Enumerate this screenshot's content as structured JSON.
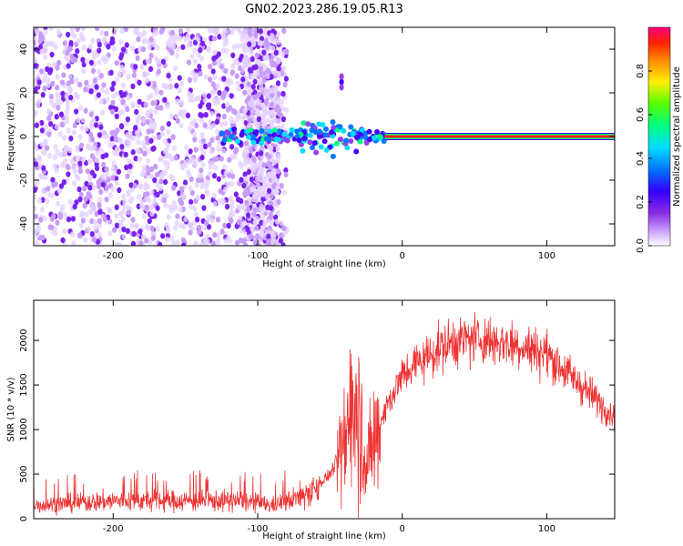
{
  "title": "GN02.2023.286.19.05.R13",
  "chart_data": [
    {
      "type": "heatmap",
      "xlabel": "Height of straight line (km)",
      "ylabel": "Frequency (Hz)",
      "xlim": [
        -255,
        147
      ],
      "ylim": [
        -50,
        50
      ],
      "x_ticks": [
        -200,
        -100,
        0,
        100
      ],
      "y_ticks": [
        -40,
        -20,
        0,
        20,
        40
      ],
      "colorbar": {
        "label": "Normalized spectral amplitude",
        "range": [
          0,
          1
        ],
        "ticks": [
          0.0,
          0.2,
          0.4,
          0.6,
          0.8
        ],
        "tick_labels": [
          "0.0",
          "0.2",
          "0.4",
          "0.6",
          "0.8"
        ]
      },
      "features": {
        "noise_region_x": [
          -255,
          -80
        ],
        "dense_noise_band_x": [
          -110,
          -85
        ],
        "isolated_feature": {
          "x": -42,
          "y": 25
        },
        "carrier_onset_x": -125,
        "carrier_frequency_hz": 0,
        "carrier_rise_region_x": [
          -70,
          -30
        ]
      }
    },
    {
      "type": "line",
      "xlabel": "Height of straight line (km)",
      "ylabel": "SNR (10 * v/v)",
      "xlim": [
        -255,
        147
      ],
      "ylim": [
        0,
        2450
      ],
      "x_ticks": [
        -200,
        -100,
        0,
        100
      ],
      "y_ticks": [
        0,
        500,
        1000,
        1500,
        2000
      ],
      "color": "#ee3333",
      "series": [
        {
          "x": [
            -255,
            -200,
            -150,
            -110,
            -90,
            -70,
            -60,
            -50,
            -40,
            -35,
            -30,
            -25,
            -20,
            -10,
            0,
            10,
            20,
            30,
            40,
            50,
            60,
            70,
            80,
            90,
            100,
            110,
            120,
            130,
            140,
            147
          ],
          "values": [
            150,
            200,
            200,
            200,
            150,
            250,
            350,
            500,
            800,
            1400,
            1300,
            500,
            900,
            1300,
            1600,
            1750,
            1850,
            1950,
            2000,
            2020,
            2000,
            1980,
            1950,
            1900,
            1850,
            1700,
            1550,
            1400,
            1250,
            1150
          ]
        }
      ]
    }
  ]
}
